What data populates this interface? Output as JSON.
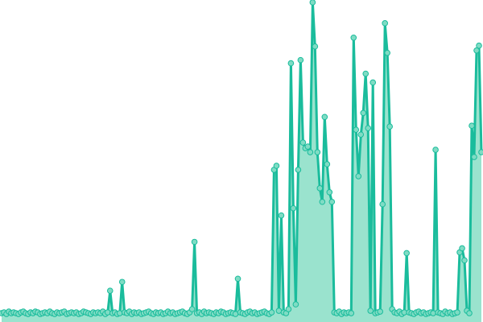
{
  "colors": {
    "line": "#1abc9c",
    "marker_fill": "#7fdcc4",
    "area_fill": "#8fe0c9"
  },
  "chart_data": {
    "type": "line",
    "title": "",
    "xlabel": "",
    "ylabel": "",
    "axes_visible": false,
    "grid": false,
    "legend": "none",
    "markers": true,
    "area_fill": true,
    "ylim": [
      0,
      400
    ],
    "values": [
      9,
      10,
      8,
      11,
      9,
      10,
      9,
      8,
      10,
      11,
      9,
      8,
      10,
      9,
      11,
      10,
      8,
      9,
      10,
      9,
      11,
      9,
      8,
      10,
      9,
      10,
      11,
      8,
      9,
      10,
      9,
      10,
      8,
      9,
      11,
      10,
      9,
      8,
      10,
      9,
      10,
      9,
      11,
      8,
      10,
      37,
      9,
      10,
      8,
      9,
      48,
      10,
      9,
      11,
      8,
      10,
      9,
      10,
      8,
      9,
      10,
      11,
      9,
      8,
      10,
      9,
      10,
      8,
      9,
      11,
      9,
      10,
      8,
      9,
      10,
      11,
      9,
      8,
      10,
      14,
      98,
      9,
      10,
      8,
      11,
      9,
      10,
      9,
      8,
      10,
      9,
      11,
      10,
      8,
      9,
      10,
      9,
      8,
      52,
      10,
      9,
      8,
      10,
      11,
      9,
      10,
      8,
      9,
      10,
      11,
      9,
      8,
      10,
      188,
      193,
      12,
      131,
      10,
      9,
      14,
      321,
      140,
      20,
      188,
      325,
      222,
      215,
      217,
      210,
      397,
      342,
      210,
      165,
      148,
      254,
      195,
      160,
      148,
      10,
      9,
      11,
      8,
      10,
      9,
      10,
      9,
      353,
      238,
      180,
      232,
      259,
      308,
      240,
      12,
      297,
      9,
      10,
      11,
      145,
      371,
      334,
      242,
      14,
      10,
      9,
      11,
      8,
      10,
      84,
      10,
      9,
      8,
      10,
      11,
      9,
      10,
      8,
      9,
      10,
      9,
      213,
      10,
      9,
      8,
      11,
      9,
      10,
      8,
      9,
      10,
      85,
      90,
      75,
      12,
      9,
      243,
      204,
      337,
      343,
      210
    ]
  }
}
